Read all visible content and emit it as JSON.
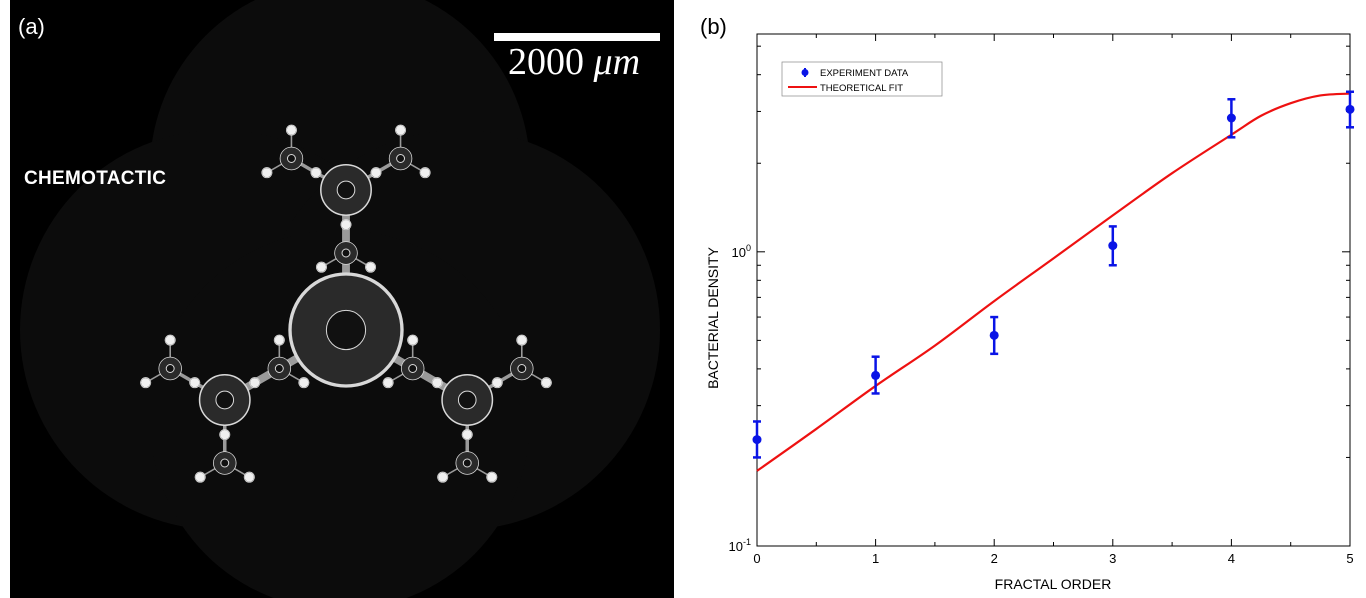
{
  "panel_a": {
    "label": "(a)",
    "scale_bar_value": "2000",
    "scale_bar_unit": "μm",
    "condition": "CHEMOTACTIC"
  },
  "panel_b": {
    "label": "(b)"
  },
  "colors": {
    "data_color": "#0a14e6",
    "fit_color": "#ee1111",
    "micro_background": "#000000",
    "micro_structure": "#d8d8d8"
  },
  "chart_data": {
    "type": "scatter",
    "xlabel": "FRACTAL ORDER",
    "ylabel": "BACTERIAL DENSITY",
    "yscale": "log",
    "xlim": [
      0,
      5
    ],
    "ylim": [
      0.1,
      5.5
    ],
    "x_ticks": [
      0,
      1,
      2,
      3,
      4,
      5
    ],
    "x_tick_labels": [
      "0",
      "1",
      "2",
      "3",
      "4",
      "5"
    ],
    "y_major_ticks": [
      {
        "value": 0.1,
        "base": "10",
        "exp": "-1"
      },
      {
        "value": 1,
        "base": "10",
        "exp": "0"
      }
    ],
    "legend_position": "top-left",
    "grid": false,
    "series": [
      {
        "name": "EXPERIMENT DATA",
        "kind": "points_with_errorbars",
        "x": [
          0,
          1,
          2,
          3,
          4,
          5
        ],
        "y": [
          0.23,
          0.38,
          0.52,
          1.05,
          2.85,
          3.05
        ],
        "err_low": [
          0.2,
          0.33,
          0.45,
          0.9,
          2.45,
          2.65
        ],
        "err_high": [
          0.265,
          0.44,
          0.6,
          1.22,
          3.3,
          3.5
        ]
      },
      {
        "name": "THEORETICAL FIT",
        "kind": "line",
        "x": [
          0,
          0.5,
          1,
          1.5,
          2,
          2.5,
          3,
          3.5,
          4,
          4.25,
          4.5,
          4.75,
          5
        ],
        "y": [
          0.18,
          0.25,
          0.35,
          0.48,
          0.68,
          0.95,
          1.33,
          1.85,
          2.5,
          2.9,
          3.2,
          3.4,
          3.45
        ]
      }
    ]
  }
}
